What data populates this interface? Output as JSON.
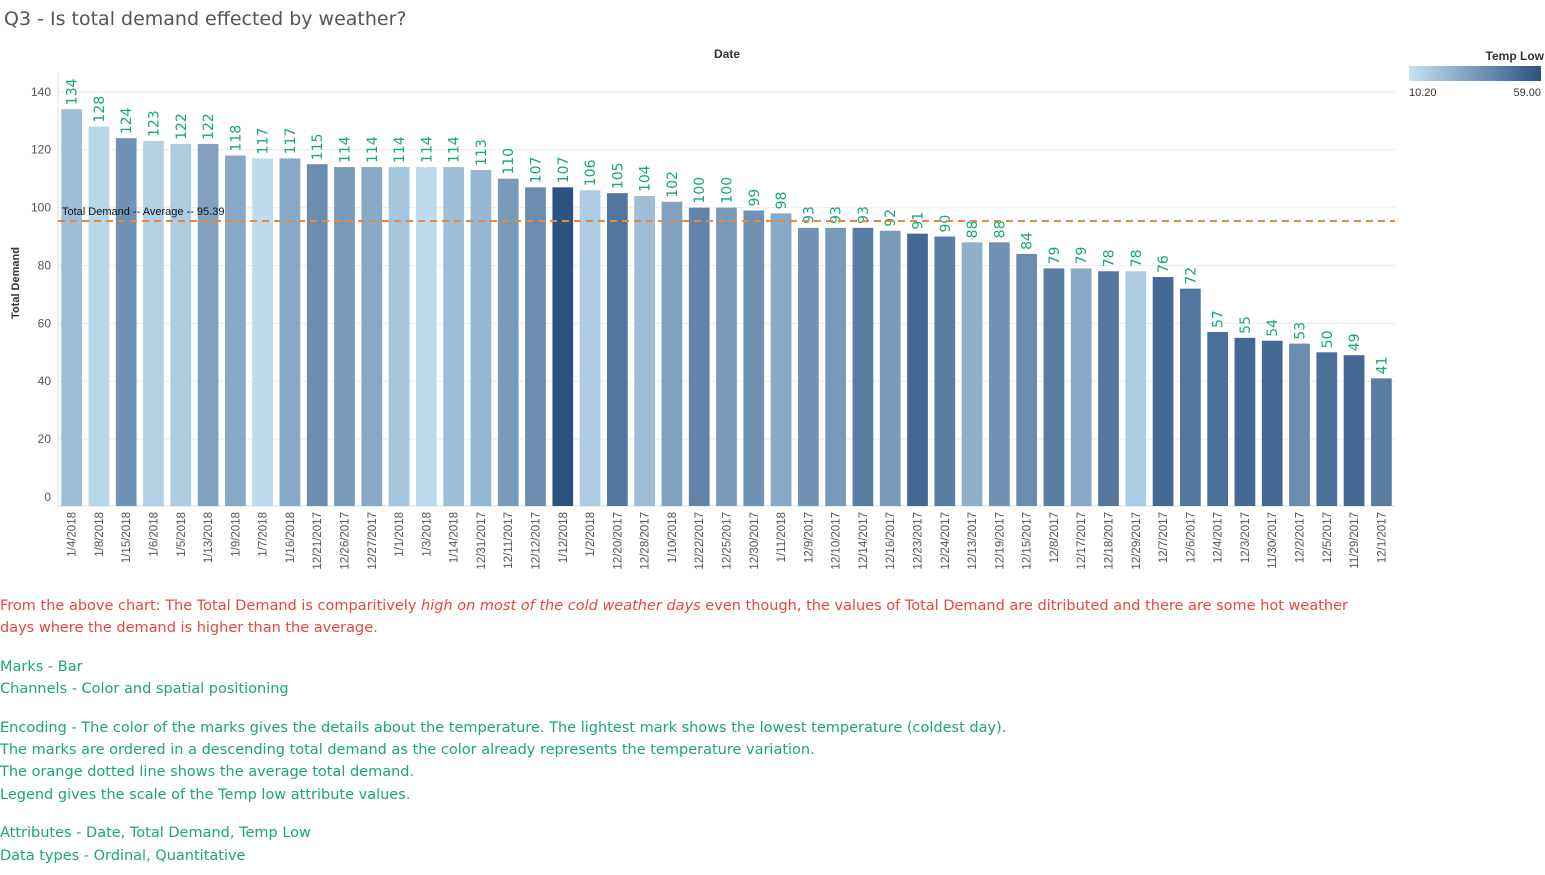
{
  "title": "Q3 - Is total demand effected by weather?",
  "chart_data": {
    "type": "bar",
    "xlabel": "Date",
    "ylabel": "Total Demand",
    "ylim": [
      0,
      150
    ],
    "yticks": [
      0,
      20,
      40,
      60,
      80,
      100,
      120,
      140
    ],
    "grid": true,
    "categories": [
      "1/4/2018",
      "1/8/2018",
      "1/15/2018",
      "1/6/2018",
      "1/5/2018",
      "1/13/2018",
      "1/9/2018",
      "1/7/2018",
      "1/16/2018",
      "12/21/2017",
      "12/26/2017",
      "12/27/2017",
      "1/1/2018",
      "1/3/2018",
      "1/14/2018",
      "12/31/2017",
      "12/11/2017",
      "12/12/2017",
      "1/12/2018",
      "1/2/2018",
      "12/20/2017",
      "12/28/2017",
      "1/10/2018",
      "12/22/2017",
      "12/25/2017",
      "12/30/2017",
      "1/11/2018",
      "12/9/2017",
      "12/10/2017",
      "12/14/2017",
      "12/16/2017",
      "12/23/2017",
      "12/24/2017",
      "12/13/2017",
      "12/19/2017",
      "12/15/2017",
      "12/8/2017",
      "12/17/2017",
      "12/18/2017",
      "12/29/2017",
      "12/7/2017",
      "12/6/2017",
      "12/4/2017",
      "12/3/2017",
      "11/30/2017",
      "12/2/2017",
      "12/5/2017",
      "11/29/2017",
      "12/1/2017"
    ],
    "values": [
      134,
      128,
      124,
      123,
      122,
      122,
      118,
      117,
      117,
      115,
      114,
      114,
      114,
      114,
      114,
      113,
      110,
      107,
      107,
      106,
      105,
      104,
      102,
      100,
      100,
      99,
      98,
      93,
      93,
      93,
      92,
      91,
      90,
      88,
      88,
      84,
      79,
      79,
      78,
      78,
      76,
      72,
      57,
      55,
      54,
      53,
      50,
      49,
      41
    ],
    "color_level": [
      0.25,
      0.08,
      0.55,
      0.12,
      0.15,
      0.45,
      0.4,
      0.05,
      0.4,
      0.6,
      0.5,
      0.4,
      0.2,
      0.05,
      0.25,
      0.3,
      0.5,
      0.6,
      1.0,
      0.15,
      0.75,
      0.25,
      0.45,
      0.65,
      0.5,
      0.55,
      0.4,
      0.55,
      0.5,
      0.7,
      0.5,
      0.85,
      0.7,
      0.35,
      0.55,
      0.6,
      0.7,
      0.4,
      0.75,
      0.15,
      0.85,
      0.75,
      0.8,
      0.85,
      0.85,
      0.6,
      0.8,
      0.85,
      0.7
    ],
    "average": {
      "value": 95.39,
      "label": "Total Demand -- Average -- 95.39",
      "color": "#e8883a"
    },
    "label_color": "#1aa57a",
    "legend": {
      "title": "Temp Low",
      "min_label": "10.20",
      "max_label": "59.00",
      "color_min": "#c4e2f3",
      "color_max": "#2c5282",
      "placement": "top-right"
    }
  },
  "notes": {
    "finding_prefix": "From the above chart: The Total Demand is comparitively ",
    "finding_emphasis": "high on most of the cold weather days",
    "finding_suffix": " even though, the values of Total Demand are ditributed and there are some hot weather",
    "finding_line2": "days where the demand is higher than the average.",
    "marks": "Marks - Bar",
    "channels": "Channels - Color and spatial positioning",
    "encoding1": "Encoding - The color of the marks gives the details about the temperature. The lightest mark shows the lowest temperature (coldest day).",
    "encoding2": "The marks are ordered in a descending total demand as the color already represents the temperature variation.",
    "encoding3": "The orange dotted line shows the average total demand.",
    "encoding4": "Legend gives the scale of the Temp low attribute values.",
    "attributes": "Attributes - Date, Total Demand, Temp Low",
    "datatypes": "Data types - Ordinal, Quantitative"
  }
}
